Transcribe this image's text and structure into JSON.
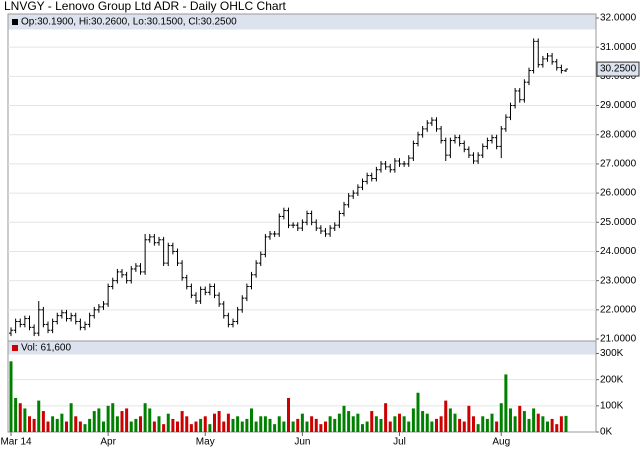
{
  "chart_data": {
    "type": "ohlc",
    "title": "LNVGY - Lenovo Group Ltd ADR - Daily OHLC Chart",
    "info": "Op:30.1900, Hi:30.2600, Lo:30.1500, Cl:30.2500",
    "volume_label": "Vol: 61,600",
    "last_price": {
      "value": 30.25,
      "label": "30.2500"
    },
    "color": "#000000",
    "up_color": "#008000",
    "down_color": "#cc0000",
    "grid": true,
    "categories": [
      "Mar 14",
      null,
      null,
      null,
      null,
      null,
      null,
      null,
      null,
      null,
      null,
      null,
      null,
      null,
      null,
      null,
      null,
      null,
      null,
      null,
      null,
      "Apr",
      null,
      null,
      null,
      null,
      null,
      null,
      null,
      null,
      null,
      null,
      null,
      null,
      null,
      null,
      null,
      null,
      null,
      null,
      null,
      null,
      "May",
      null,
      null,
      null,
      null,
      null,
      null,
      null,
      null,
      null,
      null,
      null,
      null,
      null,
      null,
      null,
      null,
      null,
      null,
      null,
      null,
      "Jun",
      null,
      null,
      null,
      null,
      null,
      null,
      null,
      null,
      null,
      null,
      null,
      null,
      null,
      null,
      null,
      null,
      null,
      null,
      null,
      null,
      "Jul",
      null,
      null,
      null,
      null,
      null,
      null,
      null,
      null,
      null,
      null,
      null,
      null,
      null,
      null,
      null,
      null,
      null,
      null,
      null,
      null,
      null,
      "Aug",
      null,
      null,
      null,
      null,
      null,
      null,
      null,
      null,
      null,
      null,
      null,
      null,
      null,
      null
    ],
    "open": [
      21.2,
      21.3,
      21.6,
      21.5,
      21.7,
      21.4,
      21.2,
      22.0,
      21.5,
      21.3,
      21.6,
      21.8,
      21.9,
      21.7,
      21.8,
      21.6,
      21.4,
      21.5,
      21.8,
      22.0,
      22.1,
      22.2,
      22.8,
      23.0,
      23.3,
      23.2,
      23.0,
      23.4,
      23.5,
      23.3,
      24.4,
      24.5,
      24.3,
      24.4,
      23.6,
      24.2,
      24.0,
      23.6,
      23.1,
      22.8,
      22.5,
      22.3,
      22.7,
      22.6,
      22.8,
      22.5,
      22.2,
      21.8,
      21.5,
      21.6,
      22.0,
      22.4,
      22.8,
      23.2,
      23.6,
      23.9,
      24.5,
      24.6,
      24.6,
      25.2,
      25.4,
      24.9,
      24.9,
      24.8,
      25.0,
      25.3,
      25.0,
      24.8,
      24.7,
      24.6,
      24.8,
      24.9,
      25.3,
      25.6,
      25.9,
      26.0,
      26.2,
      26.4,
      26.6,
      26.5,
      26.8,
      27.0,
      26.9,
      26.8,
      27.1,
      27.0,
      27.0,
      27.2,
      27.7,
      28.0,
      28.2,
      28.4,
      28.5,
      28.2,
      27.8,
      27.3,
      27.8,
      27.9,
      27.7,
      27.5,
      27.3,
      27.1,
      27.3,
      27.6,
      27.8,
      27.9,
      27.6,
      28.2,
      28.6,
      29.0,
      29.5,
      29.2,
      29.8,
      30.2,
      31.2,
      30.4,
      30.6,
      30.7,
      30.5,
      30.3,
      30.19
    ],
    "high": [
      21.4,
      21.7,
      21.7,
      21.8,
      21.8,
      21.5,
      22.3,
      22.1,
      21.6,
      21.7,
      21.9,
      22.0,
      22.0,
      21.9,
      21.9,
      21.7,
      21.6,
      21.9,
      22.1,
      22.2,
      22.3,
      22.9,
      23.1,
      23.4,
      23.4,
      23.3,
      23.5,
      23.6,
      23.6,
      24.6,
      24.6,
      24.6,
      24.5,
      24.5,
      24.3,
      24.3,
      24.1,
      23.7,
      23.2,
      22.9,
      22.6,
      22.8,
      22.8,
      22.9,
      22.9,
      22.6,
      22.3,
      21.9,
      21.7,
      22.1,
      22.5,
      22.9,
      23.3,
      23.7,
      24.0,
      24.6,
      24.7,
      24.7,
      25.3,
      25.5,
      25.5,
      25.0,
      25.0,
      25.1,
      25.4,
      25.4,
      25.1,
      24.9,
      24.8,
      24.9,
      25.0,
      25.4,
      25.7,
      26.0,
      26.1,
      26.3,
      26.5,
      26.7,
      26.7,
      26.9,
      27.1,
      27.1,
      27.0,
      27.2,
      27.2,
      27.1,
      27.3,
      27.8,
      28.1,
      28.3,
      28.5,
      28.6,
      28.6,
      28.3,
      27.9,
      27.9,
      28.0,
      28.0,
      27.8,
      27.6,
      27.4,
      27.4,
      27.7,
      27.9,
      28.0,
      28.0,
      28.3,
      28.7,
      29.1,
      29.6,
      29.6,
      29.9,
      30.3,
      31.3,
      31.3,
      30.7,
      30.8,
      30.8,
      30.6,
      30.4,
      30.26
    ],
    "low": [
      21.1,
      21.2,
      21.4,
      21.4,
      21.3,
      21.1,
      21.1,
      21.4,
      21.2,
      21.2,
      21.5,
      21.7,
      21.6,
      21.6,
      21.5,
      21.3,
      21.3,
      21.4,
      21.7,
      21.9,
      22.0,
      22.1,
      22.7,
      22.9,
      23.1,
      22.9,
      22.9,
      23.3,
      23.2,
      23.2,
      24.3,
      24.2,
      24.2,
      23.5,
      23.5,
      23.9,
      23.5,
      23.0,
      22.7,
      22.4,
      22.2,
      22.2,
      22.5,
      22.5,
      22.4,
      22.1,
      21.7,
      21.4,
      21.4,
      21.5,
      21.9,
      22.3,
      22.7,
      23.1,
      23.5,
      23.8,
      24.4,
      24.5,
      24.5,
      25.1,
      24.8,
      24.8,
      24.7,
      24.7,
      24.9,
      24.9,
      24.7,
      24.6,
      24.5,
      24.5,
      24.7,
      24.8,
      25.2,
      25.5,
      25.8,
      25.9,
      26.1,
      26.3,
      26.4,
      26.4,
      26.7,
      26.8,
      26.7,
      26.7,
      26.9,
      26.9,
      26.9,
      27.1,
      27.6,
      27.9,
      28.1,
      28.3,
      28.1,
      27.7,
      27.1,
      27.2,
      27.7,
      27.6,
      27.4,
      27.2,
      27.0,
      27.0,
      27.2,
      27.5,
      27.7,
      27.5,
      27.2,
      28.1,
      28.5,
      28.9,
      29.1,
      29.1,
      29.7,
      30.1,
      30.3,
      30.3,
      30.5,
      30.4,
      30.2,
      30.1,
      30.15
    ],
    "close": [
      21.3,
      21.6,
      21.5,
      21.7,
      21.4,
      21.2,
      22.0,
      21.5,
      21.3,
      21.6,
      21.8,
      21.9,
      21.7,
      21.8,
      21.6,
      21.4,
      21.5,
      21.8,
      22.0,
      22.1,
      22.2,
      22.8,
      23.0,
      23.3,
      23.2,
      23.0,
      23.4,
      23.5,
      23.3,
      24.4,
      24.5,
      24.3,
      24.4,
      23.6,
      24.2,
      24.0,
      23.6,
      23.1,
      22.8,
      22.5,
      22.3,
      22.7,
      22.6,
      22.8,
      22.5,
      22.2,
      21.8,
      21.5,
      21.6,
      22.0,
      22.4,
      22.8,
      23.2,
      23.6,
      23.9,
      24.5,
      24.6,
      24.6,
      25.2,
      25.4,
      24.9,
      24.9,
      24.8,
      25.0,
      25.3,
      25.0,
      24.8,
      24.7,
      24.6,
      24.8,
      24.9,
      25.3,
      25.6,
      25.9,
      26.0,
      26.2,
      26.4,
      26.6,
      26.5,
      26.8,
      27.0,
      26.9,
      26.8,
      27.1,
      27.0,
      27.0,
      27.2,
      27.7,
      28.0,
      28.2,
      28.4,
      28.5,
      28.2,
      27.8,
      27.3,
      27.8,
      27.9,
      27.7,
      27.5,
      27.3,
      27.1,
      27.3,
      27.6,
      27.8,
      27.9,
      27.6,
      28.2,
      28.6,
      29.0,
      29.5,
      29.2,
      29.8,
      30.2,
      31.2,
      30.4,
      30.6,
      30.7,
      30.5,
      30.3,
      30.2,
      30.25
    ],
    "volume": [
      270000,
      130000,
      110000,
      90000,
      60000,
      50000,
      120000,
      80000,
      40000,
      60000,
      50000,
      70000,
      40000,
      110000,
      60000,
      40000,
      30000,
      50000,
      80000,
      90000,
      40000,
      100000,
      110000,
      60000,
      80000,
      90000,
      40000,
      50000,
      60000,
      110000,
      90000,
      40000,
      60000,
      30000,
      70000,
      50000,
      40000,
      80000,
      60000,
      30000,
      40000,
      50000,
      60000,
      30000,
      70000,
      80000,
      40000,
      70000,
      50000,
      60000,
      40000,
      50000,
      90000,
      40000,
      60000,
      60000,
      50000,
      30000,
      60000,
      40000,
      130000,
      40000,
      50000,
      70000,
      40000,
      60000,
      50000,
      30000,
      40000,
      60000,
      50000,
      70000,
      100000,
      80000,
      60000,
      70000,
      30000,
      40000,
      80000,
      60000,
      50000,
      110000,
      40000,
      60000,
      70000,
      60000,
      40000,
      90000,
      150000,
      80000,
      70000,
      40000,
      50000,
      60000,
      120000,
      90000,
      70000,
      50000,
      40000,
      100000,
      60000,
      30000,
      60000,
      50000,
      70000,
      40000,
      110000,
      220000,
      90000,
      60000,
      100000,
      80000,
      50000,
      90000,
      70000,
      60000,
      40000,
      50000,
      30000,
      60000,
      61600
    ],
    "ylim": [
      21,
      32
    ],
    "yticks": [
      {
        "value": 32,
        "label": "32.0000"
      },
      {
        "value": 31,
        "label": "31.0000"
      },
      {
        "value": 30,
        "label": "30.0000"
      },
      {
        "value": 29,
        "label": "29.0000"
      },
      {
        "value": 28,
        "label": "28.0000"
      },
      {
        "value": 27,
        "label": "27.0000"
      },
      {
        "value": 26,
        "label": "26.0000"
      },
      {
        "value": 25,
        "label": "25.0000"
      },
      {
        "value": 24,
        "label": "24.0000"
      },
      {
        "value": 23,
        "label": "23.0000"
      },
      {
        "value": 22,
        "label": "22.0000"
      },
      {
        "value": 21,
        "label": "21.0000"
      }
    ],
    "y2lim": [
      0,
      340000
    ],
    "y2ticks": [
      {
        "value": 300000,
        "label": "300K"
      },
      {
        "value": 200000,
        "label": "200K"
      },
      {
        "value": 100000,
        "label": "100K"
      },
      {
        "value": 0,
        "label": "0K"
      }
    ]
  }
}
